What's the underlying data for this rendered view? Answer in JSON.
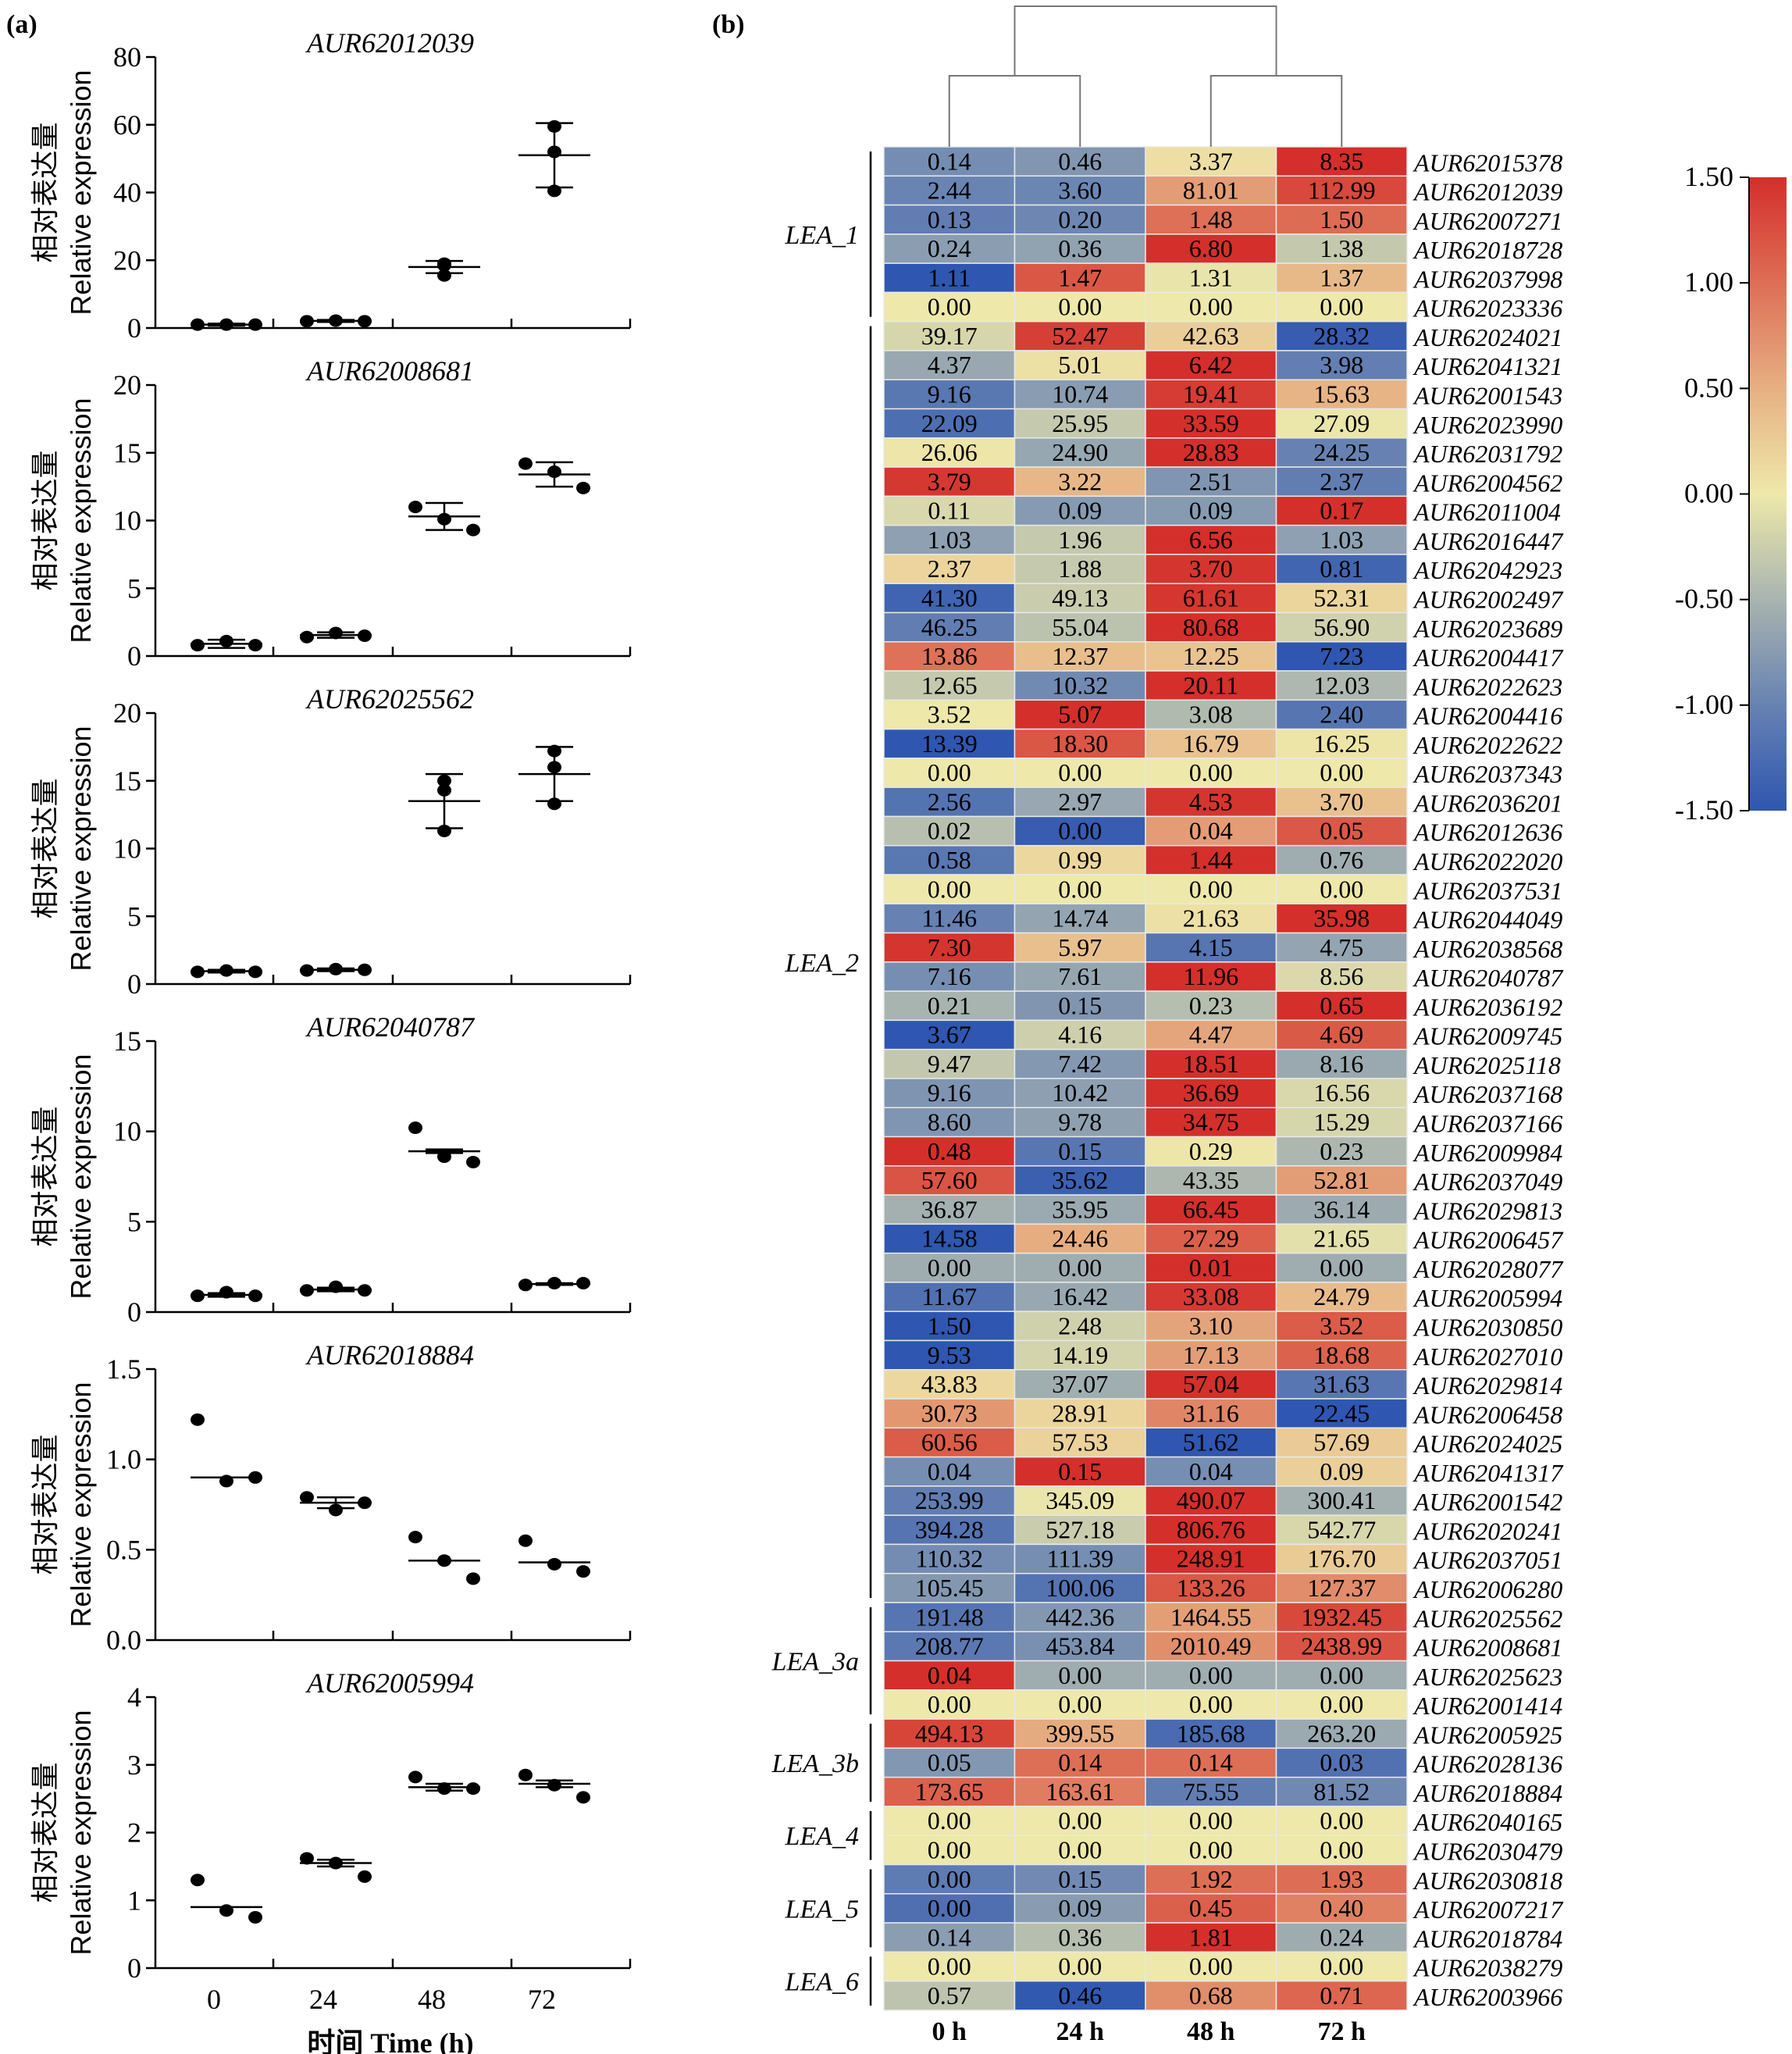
{
  "panel_labels": {
    "a": "(a)",
    "b": "(b)"
  },
  "chart_data": [
    {
      "type": "scatter",
      "panel": "a",
      "xlabel": "时间 Time (h)",
      "ylabel_cn": "相对表达量",
      "ylabel_en": "Relative expression",
      "categories": [
        "0",
        "24",
        "48",
        "72"
      ],
      "subplots": [
        {
          "title": "AUR62012039",
          "ylim": [
            0,
            80
          ],
          "yticks": [
            "0",
            "20",
            "40",
            "60",
            "80"
          ],
          "points": [
            [
              1,
              1,
              1
            ],
            [
              2,
              2.2,
              2
            ],
            [
              19,
              15.5,
              18.5
            ],
            [
              59.5,
              52,
              40.5
            ]
          ],
          "mean": [
            1,
            2.1,
            18,
            51
          ],
          "err": [
            0.3,
            0.3,
            1.8,
            9.5
          ]
        },
        {
          "title": "AUR62008681",
          "ylim": [
            0,
            20
          ],
          "yticks": [
            "0",
            "5",
            "10",
            "15",
            "20"
          ],
          "points": [
            [
              0.8,
              1.1,
              0.8
            ],
            [
              1.4,
              1.7,
              1.5
            ],
            [
              11,
              10.1,
              9.3
            ],
            [
              14.2,
              13.6,
              12.4
            ]
          ],
          "mean": [
            0.9,
            1.55,
            10.3,
            13.4
          ],
          "err": [
            0.3,
            0.2,
            1,
            0.9
          ]
        },
        {
          "title": "AUR62025562",
          "ylim": [
            0,
            20
          ],
          "yticks": [
            "0",
            "5",
            "10",
            "15",
            "20"
          ],
          "points": [
            [
              0.9,
              1,
              0.9
            ],
            [
              1,
              1.1,
              1.05
            ],
            [
              15,
              14.3,
              11.3
            ],
            [
              17.2,
              16,
              13.3
            ]
          ],
          "mean": [
            0.95,
            1.05,
            13.5,
            15.5
          ],
          "err": [
            0.1,
            0.1,
            2,
            2
          ]
        },
        {
          "title": "AUR62040787",
          "ylim": [
            0,
            15
          ],
          "yticks": [
            "0",
            "5",
            "10",
            "15"
          ],
          "points": [
            [
              0.9,
              1.1,
              0.9
            ],
            [
              1.2,
              1.4,
              1.2
            ],
            [
              10.2,
              8.6,
              8.3
            ],
            [
              1.5,
              1.6,
              1.6
            ]
          ],
          "mean": [
            0.95,
            1.25,
            8.9,
            1.55
          ],
          "err": [
            0.1,
            0.1,
            0.1,
            0.05
          ]
        },
        {
          "title": "AUR62018884",
          "ylim": [
            0,
            1.5
          ],
          "yticks": [
            "0.0",
            "0.5",
            "1.0",
            "1.5"
          ],
          "points": [
            [
              1.22,
              0.88,
              0.9
            ],
            [
              0.79,
              0.72,
              0.76
            ],
            [
              0.57,
              0.44,
              0.34
            ],
            [
              0.55,
              0.42,
              0.38
            ]
          ],
          "mean": [
            0.9,
            0.76,
            0.44,
            0.43
          ],
          "err": [
            0,
            0.03,
            0,
            0
          ]
        },
        {
          "title": "AUR62005994",
          "ylim": [
            0,
            4
          ],
          "yticks": [
            "0",
            "1",
            "2",
            "3",
            "4"
          ],
          "points": [
            [
              1.3,
              0.85,
              0.75
            ],
            [
              1.62,
              1.55,
              1.35
            ],
            [
              2.82,
              2.65,
              2.65
            ],
            [
              2.85,
              2.7,
              2.52
            ]
          ],
          "mean": [
            0.9,
            1.55,
            2.67,
            2.72
          ],
          "err": [
            0,
            0.05,
            0.05,
            0.05
          ]
        }
      ]
    },
    {
      "type": "heatmap",
      "panel": "b",
      "columns": [
        "0 h",
        "24 h",
        "48 h",
        "72 h"
      ],
      "colorbar": {
        "ticks": [
          "1.50",
          "1.00",
          "0.50",
          "0.00",
          "-0.50",
          "-1.00",
          "-1.50"
        ],
        "range": [
          -1.5,
          1.5
        ],
        "colors": [
          "#2f56b0",
          "#6782b2",
          "#a9b4b0",
          "#eee8aa",
          "#e6b083",
          "#dd6e55",
          "#d42f2b"
        ]
      },
      "dendrogram": {
        "clusters": [
          [
            "0 h",
            "24 h"
          ],
          [
            "48 h",
            "72 h"
          ]
        ]
      },
      "groups": [
        {
          "name": "LEA_1",
          "start": 0,
          "end": 5
        },
        {
          "name": "LEA_2",
          "start": 6,
          "end": 49
        },
        {
          "name": "LEA_3a",
          "start": 50,
          "end": 53
        },
        {
          "name": "LEA_3b",
          "start": 54,
          "end": 56
        },
        {
          "name": "LEA_4",
          "start": 57,
          "end": 58
        },
        {
          "name": "LEA_5",
          "start": 59,
          "end": 61
        },
        {
          "name": "LEA_6",
          "start": 62,
          "end": 63
        }
      ],
      "rows": [
        {
          "gene": "AUR62015378",
          "values": [
            "0.14",
            "0.46",
            "3.37",
            "8.35"
          ]
        },
        {
          "gene": "AUR62012039",
          "values": [
            "2.44",
            "3.60",
            "81.01",
            "112.99"
          ]
        },
        {
          "gene": "AUR62007271",
          "values": [
            "0.13",
            "0.20",
            "1.48",
            "1.50"
          ]
        },
        {
          "gene": "AUR62018728",
          "values": [
            "0.24",
            "0.36",
            "6.80",
            "1.38"
          ]
        },
        {
          "gene": "AUR62037998",
          "values": [
            "1.11",
            "1.47",
            "1.31",
            "1.37"
          ]
        },
        {
          "gene": "AUR62023336",
          "values": [
            "0.00",
            "0.00",
            "0.00",
            "0.00"
          ]
        },
        {
          "gene": "AUR62024021",
          "values": [
            "39.17",
            "52.47",
            "42.63",
            "28.32"
          ]
        },
        {
          "gene": "AUR62041321",
          "values": [
            "4.37",
            "5.01",
            "6.42",
            "3.98"
          ]
        },
        {
          "gene": "AUR62001543",
          "values": [
            "9.16",
            "10.74",
            "19.41",
            "15.63"
          ]
        },
        {
          "gene": "AUR62023990",
          "values": [
            "22.09",
            "25.95",
            "33.59",
            "27.09"
          ]
        },
        {
          "gene": "AUR62031792",
          "values": [
            "26.06",
            "24.90",
            "28.83",
            "24.25"
          ]
        },
        {
          "gene": "AUR62004562",
          "values": [
            "3.79",
            "3.22",
            "2.51",
            "2.37"
          ]
        },
        {
          "gene": "AUR62011004",
          "values": [
            "0.11",
            "0.09",
            "0.09",
            "0.17"
          ]
        },
        {
          "gene": "AUR62016447",
          "values": [
            "1.03",
            "1.96",
            "6.56",
            "1.03"
          ]
        },
        {
          "gene": "AUR62042923",
          "values": [
            "2.37",
            "1.88",
            "3.70",
            "0.81"
          ]
        },
        {
          "gene": "AUR62002497",
          "values": [
            "41.30",
            "49.13",
            "61.61",
            "52.31"
          ]
        },
        {
          "gene": "AUR62023689",
          "values": [
            "46.25",
            "55.04",
            "80.68",
            "56.90"
          ]
        },
        {
          "gene": "AUR62004417",
          "values": [
            "13.86",
            "12.37",
            "12.25",
            "7.23"
          ]
        },
        {
          "gene": "AUR62022623",
          "values": [
            "12.65",
            "10.32",
            "20.11",
            "12.03"
          ]
        },
        {
          "gene": "AUR62004416",
          "values": [
            "3.52",
            "5.07",
            "3.08",
            "2.40"
          ]
        },
        {
          "gene": "AUR62022622",
          "values": [
            "13.39",
            "18.30",
            "16.79",
            "16.25"
          ]
        },
        {
          "gene": "AUR62037343",
          "values": [
            "0.00",
            "0.00",
            "0.00",
            "0.00"
          ]
        },
        {
          "gene": "AUR62036201",
          "values": [
            "2.56",
            "2.97",
            "4.53",
            "3.70"
          ]
        },
        {
          "gene": "AUR62012636",
          "values": [
            "0.02",
            "0.00",
            "0.04",
            "0.05"
          ]
        },
        {
          "gene": "AUR62022020",
          "values": [
            "0.58",
            "0.99",
            "1.44",
            "0.76"
          ]
        },
        {
          "gene": "AUR62037531",
          "values": [
            "0.00",
            "0.00",
            "0.00",
            "0.00"
          ]
        },
        {
          "gene": "AUR62044049",
          "values": [
            "11.46",
            "14.74",
            "21.63",
            "35.98"
          ]
        },
        {
          "gene": "AUR62038568",
          "values": [
            "7.30",
            "5.97",
            "4.15",
            "4.75"
          ]
        },
        {
          "gene": "AUR62040787",
          "values": [
            "7.16",
            "7.61",
            "11.96",
            "8.56"
          ]
        },
        {
          "gene": "AUR62036192",
          "values": [
            "0.21",
            "0.15",
            "0.23",
            "0.65"
          ]
        },
        {
          "gene": "AUR62009745",
          "values": [
            "3.67",
            "4.16",
            "4.47",
            "4.69"
          ]
        },
        {
          "gene": "AUR62025118",
          "values": [
            "9.47",
            "7.42",
            "18.51",
            "8.16"
          ]
        },
        {
          "gene": "AUR62037168",
          "values": [
            "9.16",
            "10.42",
            "36.69",
            "16.56"
          ]
        },
        {
          "gene": "AUR62037166",
          "values": [
            "8.60",
            "9.78",
            "34.75",
            "15.29"
          ]
        },
        {
          "gene": "AUR62009984",
          "values": [
            "0.48",
            "0.15",
            "0.29",
            "0.23"
          ]
        },
        {
          "gene": "AUR62037049",
          "values": [
            "57.60",
            "35.62",
            "43.35",
            "52.81"
          ]
        },
        {
          "gene": "AUR62029813",
          "values": [
            "36.87",
            "35.95",
            "66.45",
            "36.14"
          ]
        },
        {
          "gene": "AUR62006457",
          "values": [
            "14.58",
            "24.46",
            "27.29",
            "21.65"
          ]
        },
        {
          "gene": "AUR62028077",
          "values": [
            "0.00",
            "0.00",
            "0.01",
            "0.00"
          ]
        },
        {
          "gene": "AUR62005994",
          "values": [
            "11.67",
            "16.42",
            "33.08",
            "24.79"
          ]
        },
        {
          "gene": "AUR62030850",
          "values": [
            "1.50",
            "2.48",
            "3.10",
            "3.52"
          ]
        },
        {
          "gene": "AUR62027010",
          "values": [
            "9.53",
            "14.19",
            "17.13",
            "18.68"
          ]
        },
        {
          "gene": "AUR62029814",
          "values": [
            "43.83",
            "37.07",
            "57.04",
            "31.63"
          ]
        },
        {
          "gene": "AUR62006458",
          "values": [
            "30.73",
            "28.91",
            "31.16",
            "22.45"
          ]
        },
        {
          "gene": "AUR62024025",
          "values": [
            "60.56",
            "57.53",
            "51.62",
            "57.69"
          ]
        },
        {
          "gene": "AUR62041317",
          "values": [
            "0.04",
            "0.15",
            "0.04",
            "0.09"
          ]
        },
        {
          "gene": "AUR62001542",
          "values": [
            "253.99",
            "345.09",
            "490.07",
            "300.41"
          ]
        },
        {
          "gene": "AUR62020241",
          "values": [
            "394.28",
            "527.18",
            "806.76",
            "542.77"
          ]
        },
        {
          "gene": "AUR62037051",
          "values": [
            "110.32",
            "111.39",
            "248.91",
            "176.70"
          ]
        },
        {
          "gene": "AUR62006280",
          "values": [
            "105.45",
            "100.06",
            "133.26",
            "127.37"
          ]
        },
        {
          "gene": "AUR62025562",
          "values": [
            "191.48",
            "442.36",
            "1464.55",
            "1932.45"
          ]
        },
        {
          "gene": "AUR62008681",
          "values": [
            "208.77",
            "453.84",
            "2010.49",
            "2438.99"
          ]
        },
        {
          "gene": "AUR62025623",
          "values": [
            "0.04",
            "0.00",
            "0.00",
            "0.00"
          ]
        },
        {
          "gene": "AUR62001414",
          "values": [
            "0.00",
            "0.00",
            "0.00",
            "0.00"
          ]
        },
        {
          "gene": "AUR62005925",
          "values": [
            "494.13",
            "399.55",
            "185.68",
            "263.20"
          ]
        },
        {
          "gene": "AUR62028136",
          "values": [
            "0.05",
            "0.14",
            "0.14",
            "0.03"
          ]
        },
        {
          "gene": "AUR62018884",
          "values": [
            "173.65",
            "163.61",
            "75.55",
            "81.52"
          ]
        },
        {
          "gene": "AUR62040165",
          "values": [
            "0.00",
            "0.00",
            "0.00",
            "0.00"
          ]
        },
        {
          "gene": "AUR62030479",
          "values": [
            "0.00",
            "0.00",
            "0.00",
            "0.00"
          ]
        },
        {
          "gene": "AUR62030818",
          "values": [
            "0.00",
            "0.15",
            "1.92",
            "1.93"
          ]
        },
        {
          "gene": "AUR62007217",
          "values": [
            "0.00",
            "0.09",
            "0.45",
            "0.40"
          ]
        },
        {
          "gene": "AUR62018784",
          "values": [
            "0.14",
            "0.36",
            "1.81",
            "0.24"
          ]
        },
        {
          "gene": "AUR62038279",
          "values": [
            "0.00",
            "0.00",
            "0.00",
            "0.00"
          ]
        },
        {
          "gene": "AUR62003966",
          "values": [
            "0.57",
            "0.46",
            "0.68",
            "0.71"
          ]
        }
      ]
    }
  ]
}
